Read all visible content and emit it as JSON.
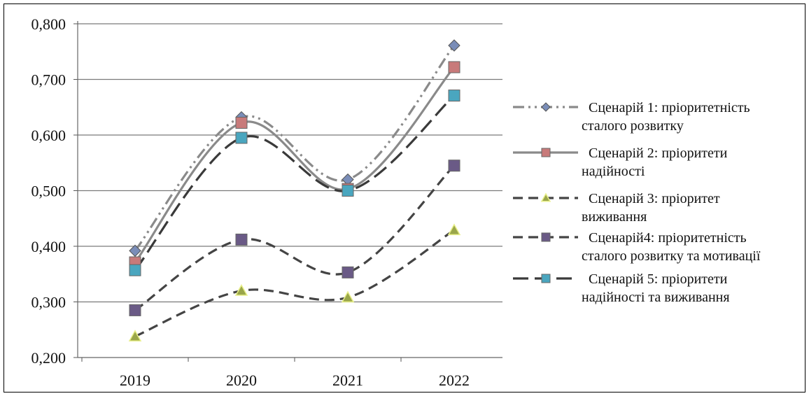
{
  "chart_data": {
    "type": "line",
    "title": "",
    "xlabel": "",
    "ylabel": "",
    "categories": [
      "2019",
      "2020",
      "2021",
      "2022"
    ],
    "ylim": [
      0.2,
      0.8
    ],
    "yticks": [
      "0,200",
      "0,300",
      "0,400",
      "0,500",
      "0,600",
      "0,700",
      "0,800"
    ],
    "grid": "horizontal",
    "legend_position": "right",
    "series": [
      {
        "name": "Сценарій 1: пріоритетність сталого розвитку",
        "legend_lines": [
          "Сценарій 1: пріоритетність",
          "сталого розвитку"
        ],
        "values": [
          0.392,
          0.632,
          0.52,
          0.761
        ],
        "line_color": "#8a8a8a",
        "marker": "diamond",
        "marker_color": "#7a8db8",
        "dash": "dash-dot-dot"
      },
      {
        "name": "Сценарій 2: пріоритети надійності",
        "legend_lines": [
          "Сценарій 2: пріоритети",
          "надійності"
        ],
        "values": [
          0.371,
          0.622,
          0.503,
          0.722
        ],
        "line_color": "#8a8a8a",
        "marker": "square",
        "marker_color": "#c87a7a",
        "dash": "solid"
      },
      {
        "name": "Сценарій 3: пріоритет виживання",
        "legend_lines": [
          "Сценарій 3: пріоритет",
          "виживання"
        ],
        "values": [
          0.238,
          0.32,
          0.308,
          0.429
        ],
        "line_color": "#444444",
        "marker": "triangle",
        "marker_color": "#9aa64a",
        "dash": "dash"
      },
      {
        "name": "Сценарій4: пріоритетність сталого розвитку та мотивації",
        "legend_lines": [
          "Сценарій4: пріоритетність",
          "сталого розвитку та мотивації"
        ],
        "values": [
          0.285,
          0.412,
          0.353,
          0.545
        ],
        "line_color": "#444444",
        "marker": "square",
        "marker_color": "#6a5a86",
        "dash": "dash"
      },
      {
        "name": "Сценарій 5: пріоритети надійності та виживання",
        "legend_lines": [
          "Сценарій 5: пріоритети",
          "надійності та виживання"
        ],
        "values": [
          0.357,
          0.595,
          0.5,
          0.671
        ],
        "line_color": "#3a3a3a",
        "marker": "square",
        "marker_color": "#4aa6bf",
        "dash": "long-dash"
      }
    ]
  }
}
